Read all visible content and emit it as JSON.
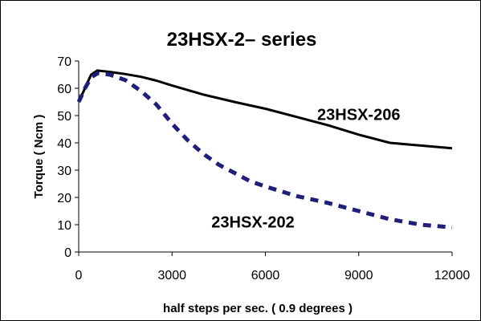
{
  "chart_data": {
    "type": "line",
    "title": "23HSX-2– series",
    "xlabel": "half steps per sec. ( 0.9 degrees )",
    "ylabel": "Torque ( Ncm )",
    "xlim": [
      0,
      12000
    ],
    "ylim": [
      0,
      70
    ],
    "x_ticks": [
      "0",
      "3000",
      "6000",
      "9000",
      "12000"
    ],
    "y_ticks": [
      "0",
      "10",
      "20",
      "30",
      "40",
      "50",
      "60",
      "70"
    ],
    "grid": false,
    "legend": "none",
    "series": [
      {
        "name": "23HSX-206",
        "color": "#000000",
        "line_style": "solid",
        "x": [
          0,
          200,
          400,
          600,
          1000,
          1500,
          2000,
          2500,
          3000,
          4000,
          5000,
          6000,
          7000,
          8000,
          9000,
          10000,
          11000,
          12000
        ],
        "y": [
          55,
          60,
          65,
          66.5,
          66,
          65.2,
          64.2,
          62.8,
          61,
          57.7,
          55,
          52.5,
          49.5,
          46.5,
          43,
          40,
          39,
          38
        ]
      },
      {
        "name": "23HSX-202",
        "color": "#1f1f7a",
        "line_style": "dashed",
        "x": [
          0,
          200,
          400,
          600,
          1000,
          1500,
          2000,
          2500,
          3000,
          3500,
          4000,
          4500,
          5000,
          5500,
          6000,
          7000,
          8000,
          9000,
          10000,
          11000,
          12000
        ],
        "y": [
          55,
          60,
          64,
          65.5,
          65,
          63,
          59,
          54,
          47,
          41,
          36,
          32,
          29,
          26,
          24,
          20.5,
          18,
          15,
          12,
          10,
          9
        ]
      }
    ],
    "annotations": [
      {
        "text": "23HSX-206",
        "x": 9000,
        "y": 50.5
      },
      {
        "text": "23HSX-202",
        "x": 5600,
        "y": 11
      }
    ]
  }
}
